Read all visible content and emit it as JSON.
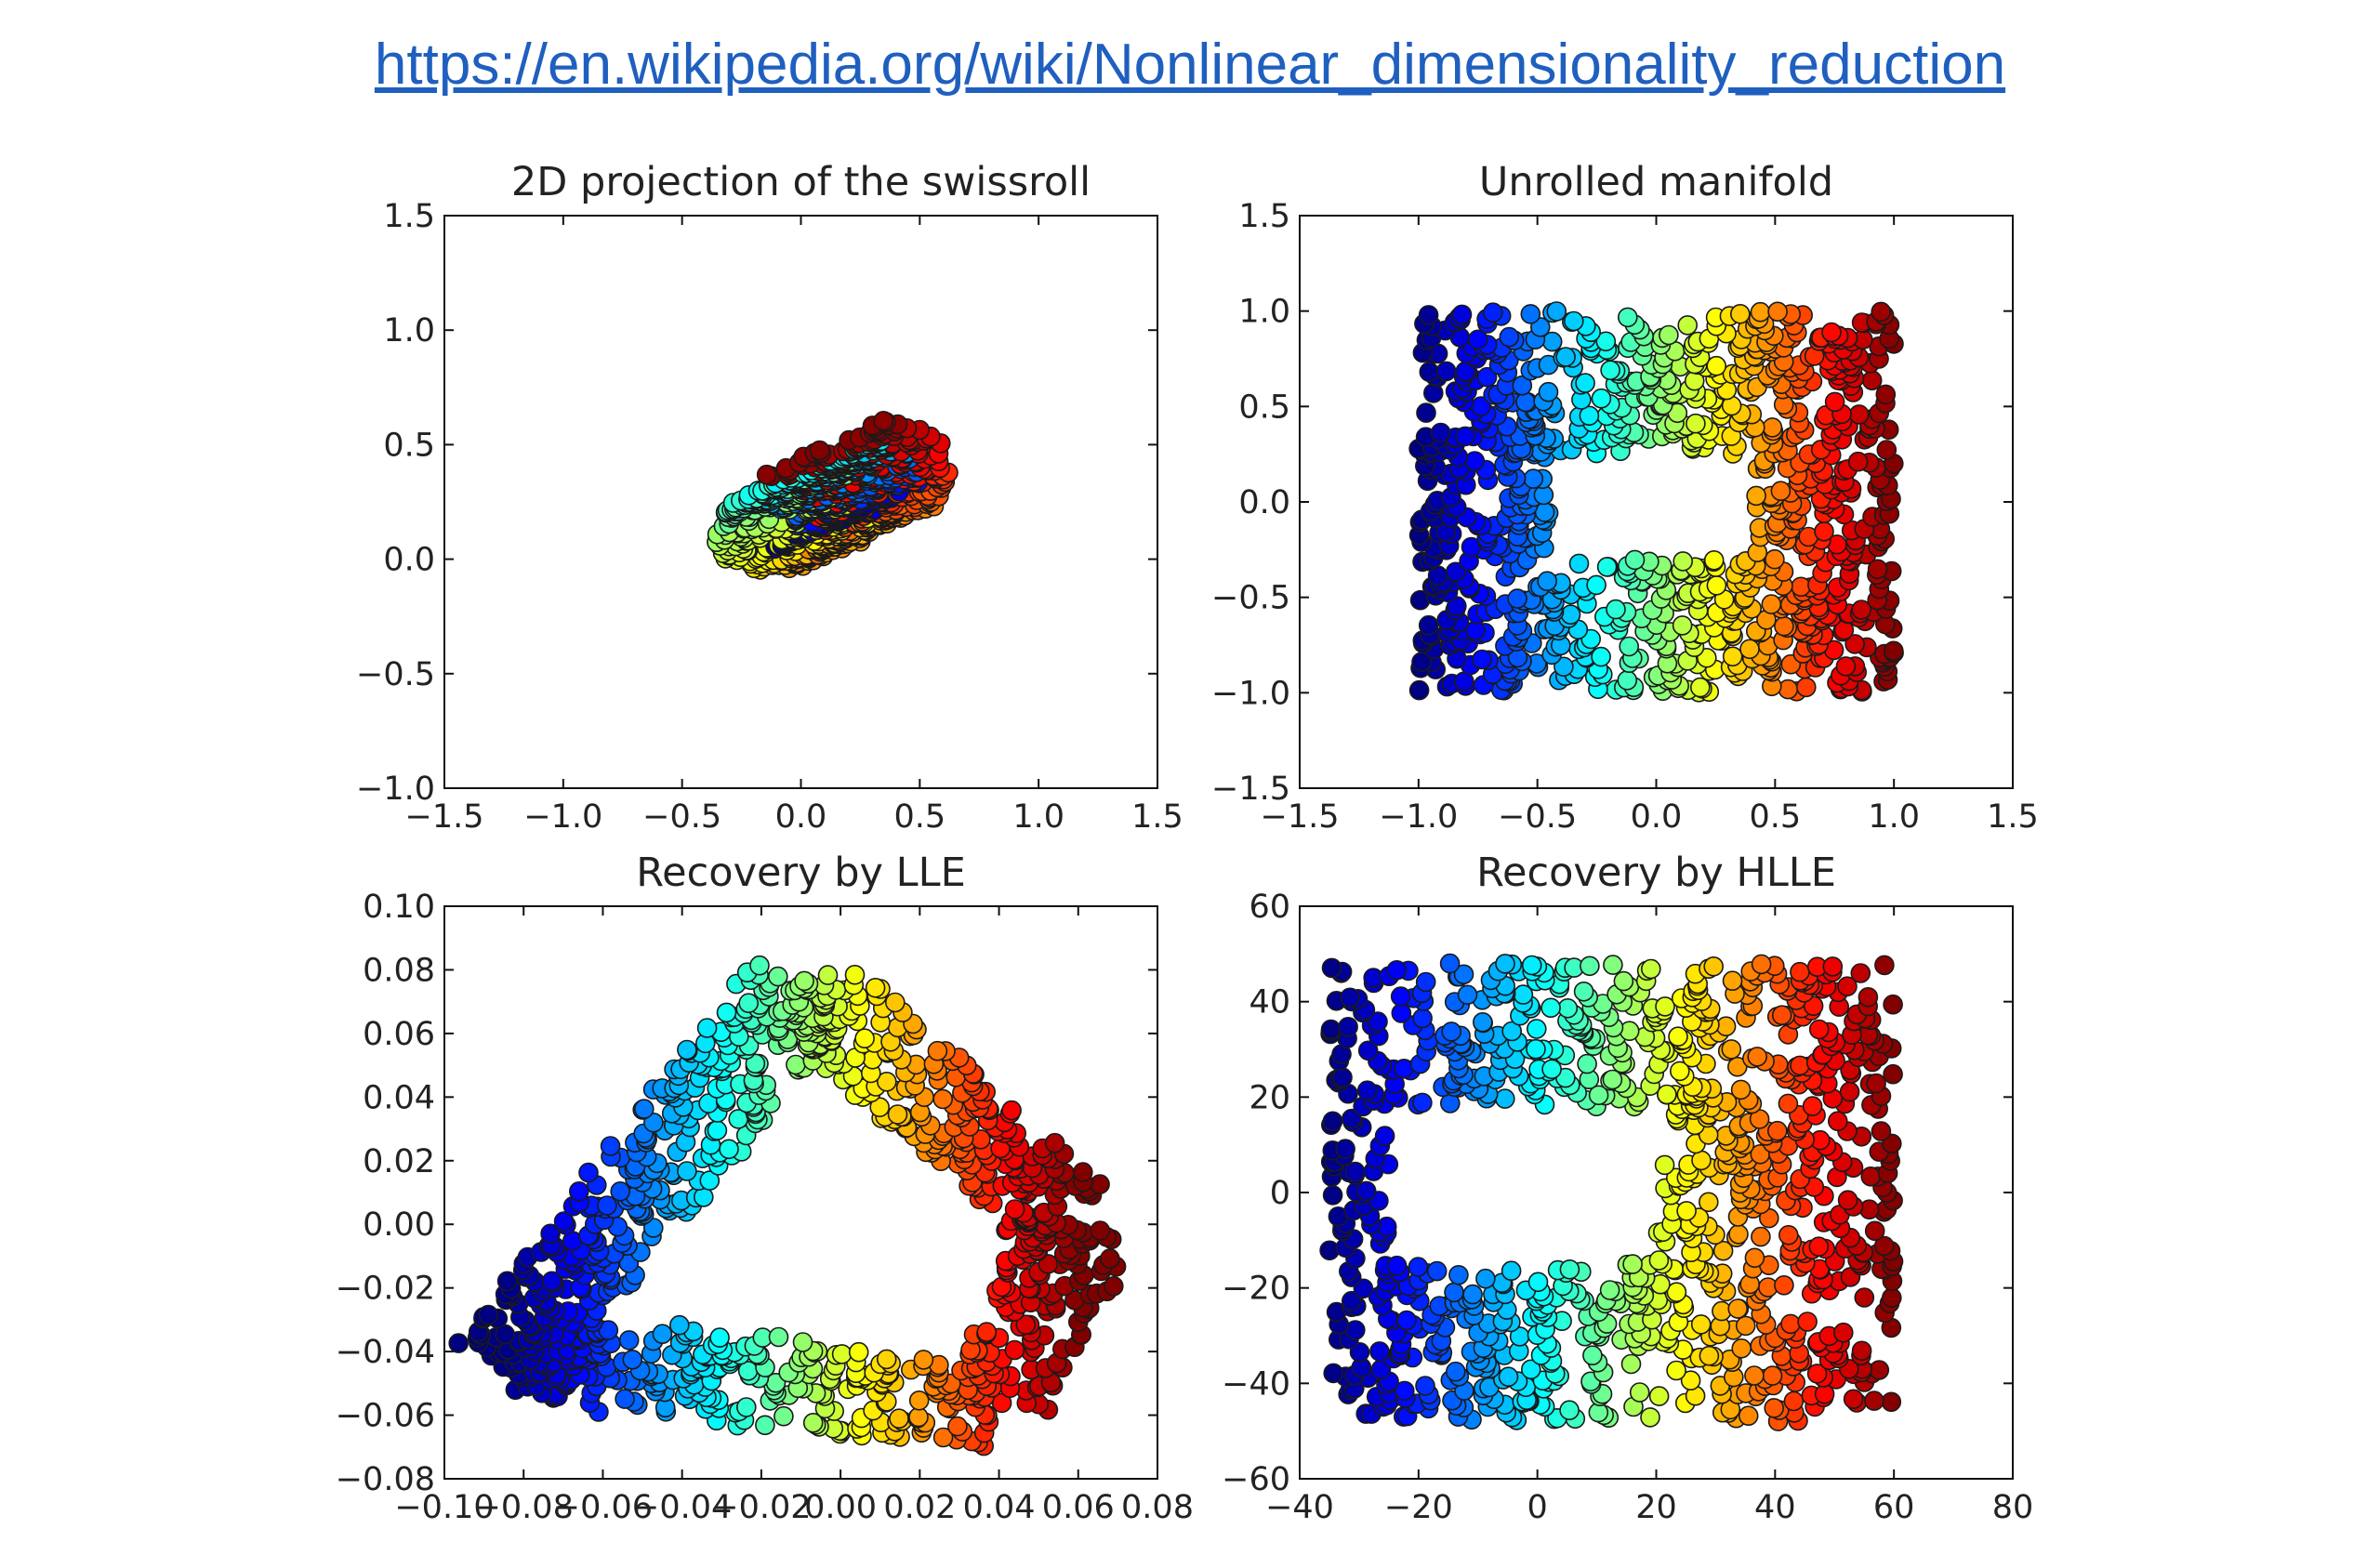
{
  "link": {
    "text": "https://en.wikipedia.org/wiki/Nonlinear_dimensionality_reduction"
  },
  "colormap": "jet",
  "chart_data": [
    {
      "type": "scatter",
      "title": "2D projection of the swissroll",
      "xlim": [
        -1.5,
        1.5
      ],
      "ylim": [
        -1.0,
        1.5
      ],
      "xticks": [
        -1.5,
        -1.0,
        -0.5,
        0.0,
        0.5,
        1.0,
        1.5
      ],
      "yticks": [
        -1.0,
        -0.5,
        0.0,
        0.5,
        1.0,
        1.5
      ],
      "xtick_labels": [
        "−1.5",
        "−1.0",
        "−0.5",
        "0.0",
        "0.5",
        "1.0",
        "1.5"
      ],
      "ytick_labels": [
        "−1.0",
        "−0.5",
        "0.0",
        "0.5",
        "1.0",
        "1.5"
      ],
      "shape": "swissroll-projection",
      "color_by": "roll position (blue = inner end, red = outer end)",
      "approx_points": 1000
    },
    {
      "type": "scatter",
      "title": "Unrolled manifold",
      "xlim": [
        -1.5,
        1.5
      ],
      "ylim": [
        -1.5,
        1.5
      ],
      "xticks": [
        -1.5,
        -1.0,
        -0.5,
        0.0,
        0.5,
        1.0,
        1.5
      ],
      "yticks": [
        -1.5,
        -1.0,
        -0.5,
        0.0,
        0.5,
        1.0,
        1.5
      ],
      "xtick_labels": [
        "−1.5",
        "−1.0",
        "−0.5",
        "0.0",
        "0.5",
        "1.0",
        "1.5"
      ],
      "ytick_labels": [
        "−1.5",
        "−1.0",
        "−0.5",
        "0.0",
        "0.5",
        "1.0",
        "1.5"
      ],
      "shape": "rectangle-with-hole",
      "point_extent": {
        "x": [
          -1.0,
          1.0
        ],
        "y": [
          -1.0,
          1.0
        ]
      },
      "hole": {
        "x": [
          -0.45,
          0.42
        ],
        "y": [
          -0.3,
          0.25
        ]
      },
      "color_by": "x position (blue = left, red = right)",
      "approx_points": 1000
    },
    {
      "type": "scatter",
      "title": "Recovery by LLE",
      "xlim": [
        -0.1,
        0.08
      ],
      "ylim": [
        -0.08,
        0.1
      ],
      "xticks": [
        -0.1,
        -0.08,
        -0.06,
        -0.04,
        -0.02,
        0.0,
        0.02,
        0.04,
        0.06,
        0.08
      ],
      "yticks": [
        -0.08,
        -0.06,
        -0.04,
        -0.02,
        0.0,
        0.02,
        0.04,
        0.06,
        0.08,
        0.1
      ],
      "xtick_labels": [
        "−0.10",
        "−0.08",
        "−0.06",
        "−0.04",
        "−0.02",
        "0.00",
        "0.02",
        "0.04",
        "0.06",
        "0.08"
      ],
      "ytick_labels": [
        "−0.08",
        "−0.06",
        "−0.04",
        "−0.02",
        "0.00",
        "0.02",
        "0.04",
        "0.06",
        "0.08",
        "0.10"
      ],
      "shape": "triangle-ring",
      "vertices": [
        [
          -0.085,
          -0.045
        ],
        [
          -0.01,
          0.075
        ],
        [
          0.06,
          0.0
        ],
        [
          0.04,
          -0.057
        ],
        [
          -0.05,
          -0.045
        ]
      ],
      "color_by": "unrolled x position (blue = left, red = right)",
      "approx_points": 1000
    },
    {
      "type": "scatter",
      "title": "Recovery by HLLE",
      "xlim": [
        -40,
        80
      ],
      "ylim": [
        -60,
        60
      ],
      "xticks": [
        -40,
        -20,
        0,
        20,
        40,
        60,
        80
      ],
      "yticks": [
        -60,
        -40,
        -20,
        0,
        20,
        40,
        60
      ],
      "xtick_labels": [
        "−40",
        "−20",
        "0",
        "20",
        "40",
        "60",
        "80"
      ],
      "ytick_labels": [
        "−60",
        "−40",
        "−20",
        "0",
        "20",
        "40",
        "60"
      ],
      "shape": "rectangle-with-hole",
      "point_extent": {
        "x": [
          -35,
          60
        ],
        "y": [
          -48,
          48
        ]
      },
      "hole": {
        "x": [
          -25,
          20
        ],
        "y": [
          -15,
          18
        ]
      },
      "color_by": "x position (blue = left, red = right)",
      "approx_points": 1000
    }
  ]
}
